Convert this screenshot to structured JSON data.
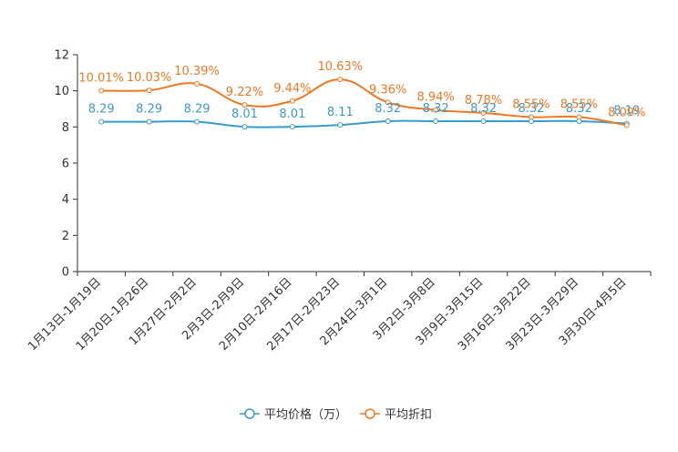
{
  "chart_data": {
    "type": "line",
    "title": "",
    "xlabel": "",
    "ylabel": "",
    "ylim": [
      0,
      12
    ],
    "yticks": [
      0,
      2,
      4,
      6,
      8,
      10,
      12
    ],
    "grid": false,
    "legend_position": "bottom-center",
    "categories": [
      "1月13日-1月19日",
      "1月20日-1月26日",
      "1月27日-2月2日",
      "2月3日-2月9日",
      "2月10日-2月16日",
      "2月17日-2月23日",
      "2月24日-3月1日",
      "3月2日-3月8日",
      "3月9日-3月15日",
      "3月16日-3月22日",
      "3月23日-3月29日",
      "3月30日-4月5日"
    ],
    "series": [
      {
        "name": "平均价格（万）",
        "color": "#3a9bd0",
        "values": [
          8.29,
          8.29,
          8.29,
          8.01,
          8.01,
          8.11,
          8.32,
          8.32,
          8.32,
          8.32,
          8.32,
          8.19
        ],
        "labels": [
          "8.29",
          "8.29",
          "8.29",
          "8.01",
          "8.01",
          "8.11",
          "8.32",
          "8.32",
          "8.32",
          "8.32",
          "8.32",
          "8.19"
        ]
      },
      {
        "name": "平均折扣",
        "color": "#f07820",
        "values": [
          10.01,
          10.03,
          10.39,
          9.22,
          9.44,
          10.63,
          9.36,
          8.94,
          8.78,
          8.55,
          8.55,
          8.09
        ],
        "labels": [
          "10.01%",
          "10.03%",
          "10.39%",
          "9.22%",
          "9.44%",
          "10.63%",
          "9.36%",
          "8.94%",
          "8.78%",
          "8.55%",
          "8.55%",
          "8.09%"
        ]
      }
    ]
  }
}
